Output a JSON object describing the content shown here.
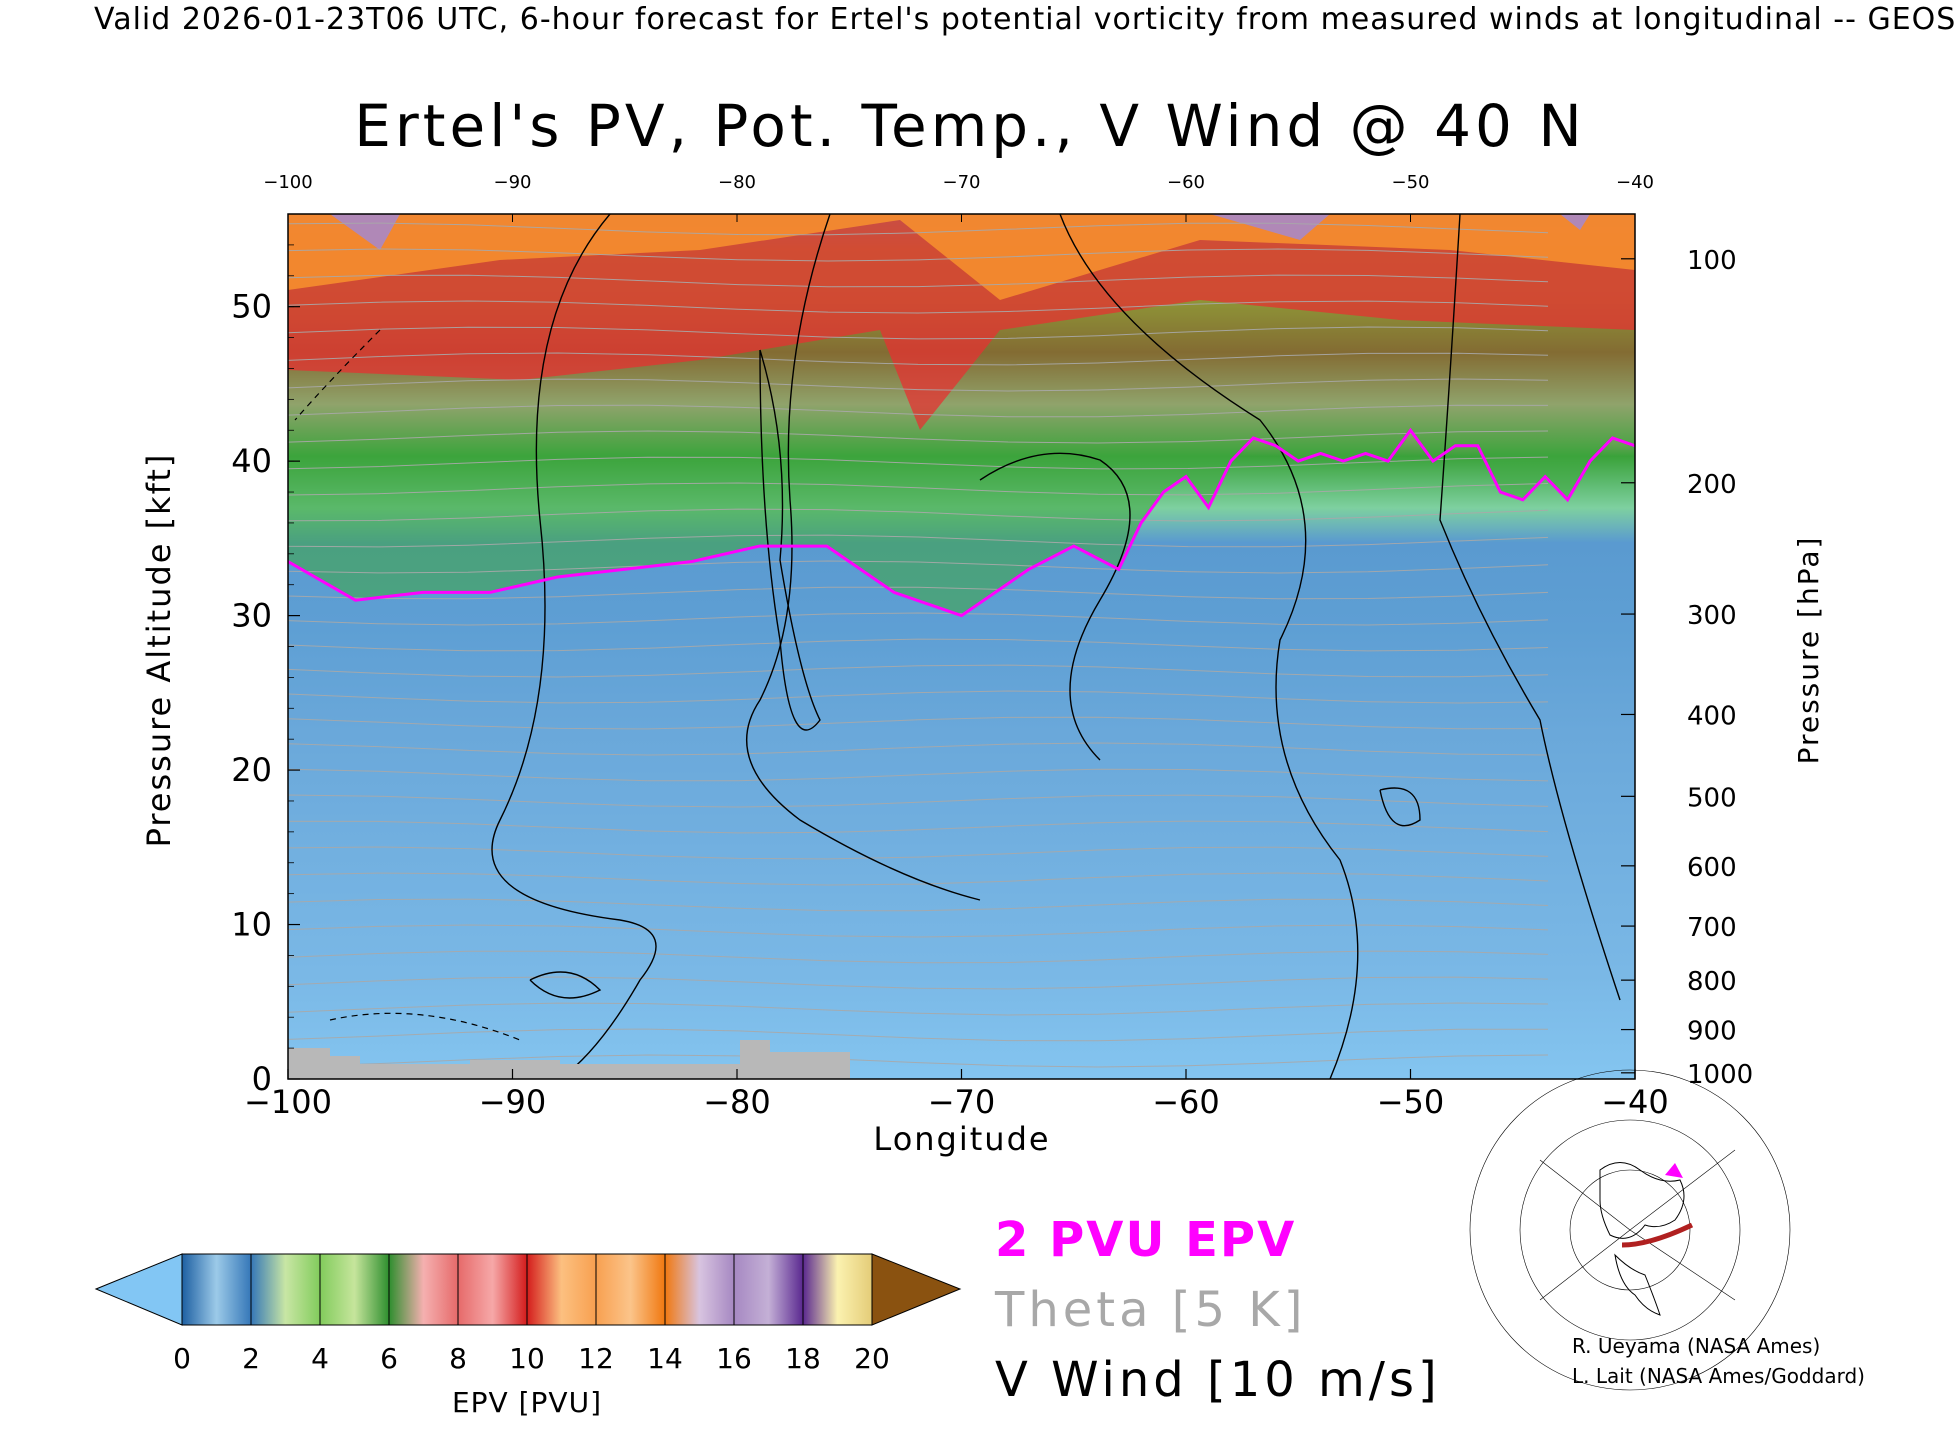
{
  "header": {
    "valid_line": "Valid 2026-01-23T06 UTC, 6-hour forecast for Ertel's potential vorticity from measured winds at longitudinal -- GEOS"
  },
  "chart_data": {
    "type": "heatmap",
    "title": "Ertel's PV, Pot. Temp., V Wind @ 40 N",
    "xlabel": "Longitude",
    "ylabel": "Pressure Altitude [kft]",
    "y2label": "Pressure [hPa]",
    "xlim": [
      -100,
      -40
    ],
    "ylim": [
      0,
      56
    ],
    "x_ticks": [
      "−100",
      "−90",
      "−80",
      "−70",
      "−60",
      "−50",
      "−40"
    ],
    "x_tick_values": [
      -100,
      -90,
      -80,
      -70,
      -60,
      -50,
      -40
    ],
    "top_ticks": [
      "−100",
      "−90",
      "−80",
      "−70",
      "−60",
      "−50",
      "−40"
    ],
    "y_ticks": [
      "0",
      "10",
      "20",
      "30",
      "40",
      "50"
    ],
    "y_tick_values": [
      0,
      10,
      20,
      30,
      40,
      50
    ],
    "pressure_ticks": [
      "100",
      "200",
      "300",
      "400",
      "500",
      "600",
      "700",
      "800",
      "900",
      "1000"
    ],
    "pressure_tick_kft": [
      53.1,
      38.6,
      30.1,
      23.6,
      18.3,
      13.8,
      9.9,
      6.4,
      3.2,
      0.4
    ],
    "tropopause_2pvu_kft": {
      "lon": [
        -100,
        -97,
        -94,
        -91,
        -88,
        -85,
        -82,
        -79,
        -76,
        -73,
        -70,
        -67,
        -65,
        -63,
        -62,
        -61,
        -60,
        -59,
        -58,
        -57,
        -56,
        -55,
        -54,
        -53,
        -52,
        -51,
        -50,
        -49,
        -48,
        -47,
        -46,
        -45,
        -44,
        -43,
        -42,
        -41,
        -40
      ],
      "alt": [
        33.5,
        31,
        31.5,
        31.5,
        32.5,
        33,
        33.5,
        34.5,
        34.5,
        31.5,
        30,
        33,
        34.5,
        33,
        36,
        38,
        39,
        37,
        40,
        41.5,
        41,
        40,
        40.5,
        40,
        40.5,
        40,
        42,
        40,
        41,
        41,
        38,
        37.5,
        39,
        37.5,
        40,
        41.5,
        41
      ]
    },
    "epv_bands_kft": [
      {
        "name": "blue 0-2",
        "range": [
          0,
          2
        ]
      },
      {
        "name": "green 2-6",
        "range": [
          2,
          6
        ]
      },
      {
        "name": "red 6-12",
        "range": [
          6,
          12
        ]
      },
      {
        "name": "orange 12-14",
        "range": [
          12,
          14
        ]
      },
      {
        "name": "purple 14-18",
        "range": [
          14,
          18
        ]
      }
    ],
    "colorbar": {
      "label": "EPV [PVU]",
      "ticks": [
        "0",
        "2",
        "4",
        "6",
        "8",
        "10",
        "12",
        "14",
        "16",
        "18",
        "20"
      ],
      "colors": [
        "#3a78b8",
        "#5d9bd0",
        "#8ab9dc",
        "#c6e0a0",
        "#8fd06a",
        "#4fae3a",
        "#2e8e2e",
        "#e69a9a",
        "#f5a0a5",
        "#e03030",
        "#d01818",
        "#f8b070",
        "#f89038",
        "#f07a10",
        "#e88a18",
        "#c6b2d8",
        "#a486c0",
        "#6e3a9a",
        "#5a2890",
        "#f8f0a0",
        "#e8d080"
      ],
      "under_color": "#82c6f4",
      "over_color": "#8a5210"
    }
  },
  "legend": {
    "pv_label": "2 PVU EPV",
    "theta_label": "Theta [5 K]",
    "wind_label": "V Wind [10 m/s]"
  },
  "credits": {
    "line1": "R. Ueyama (NASA Ames)",
    "line2": "L. Lait (NASA Ames/Goddard)"
  },
  "colors": {
    "tropopause": "#ff00ff",
    "theta": "#a8a8a8",
    "wind": "#000000",
    "terrain": "#b8b8b8",
    "locator_arc": "#b02020"
  }
}
